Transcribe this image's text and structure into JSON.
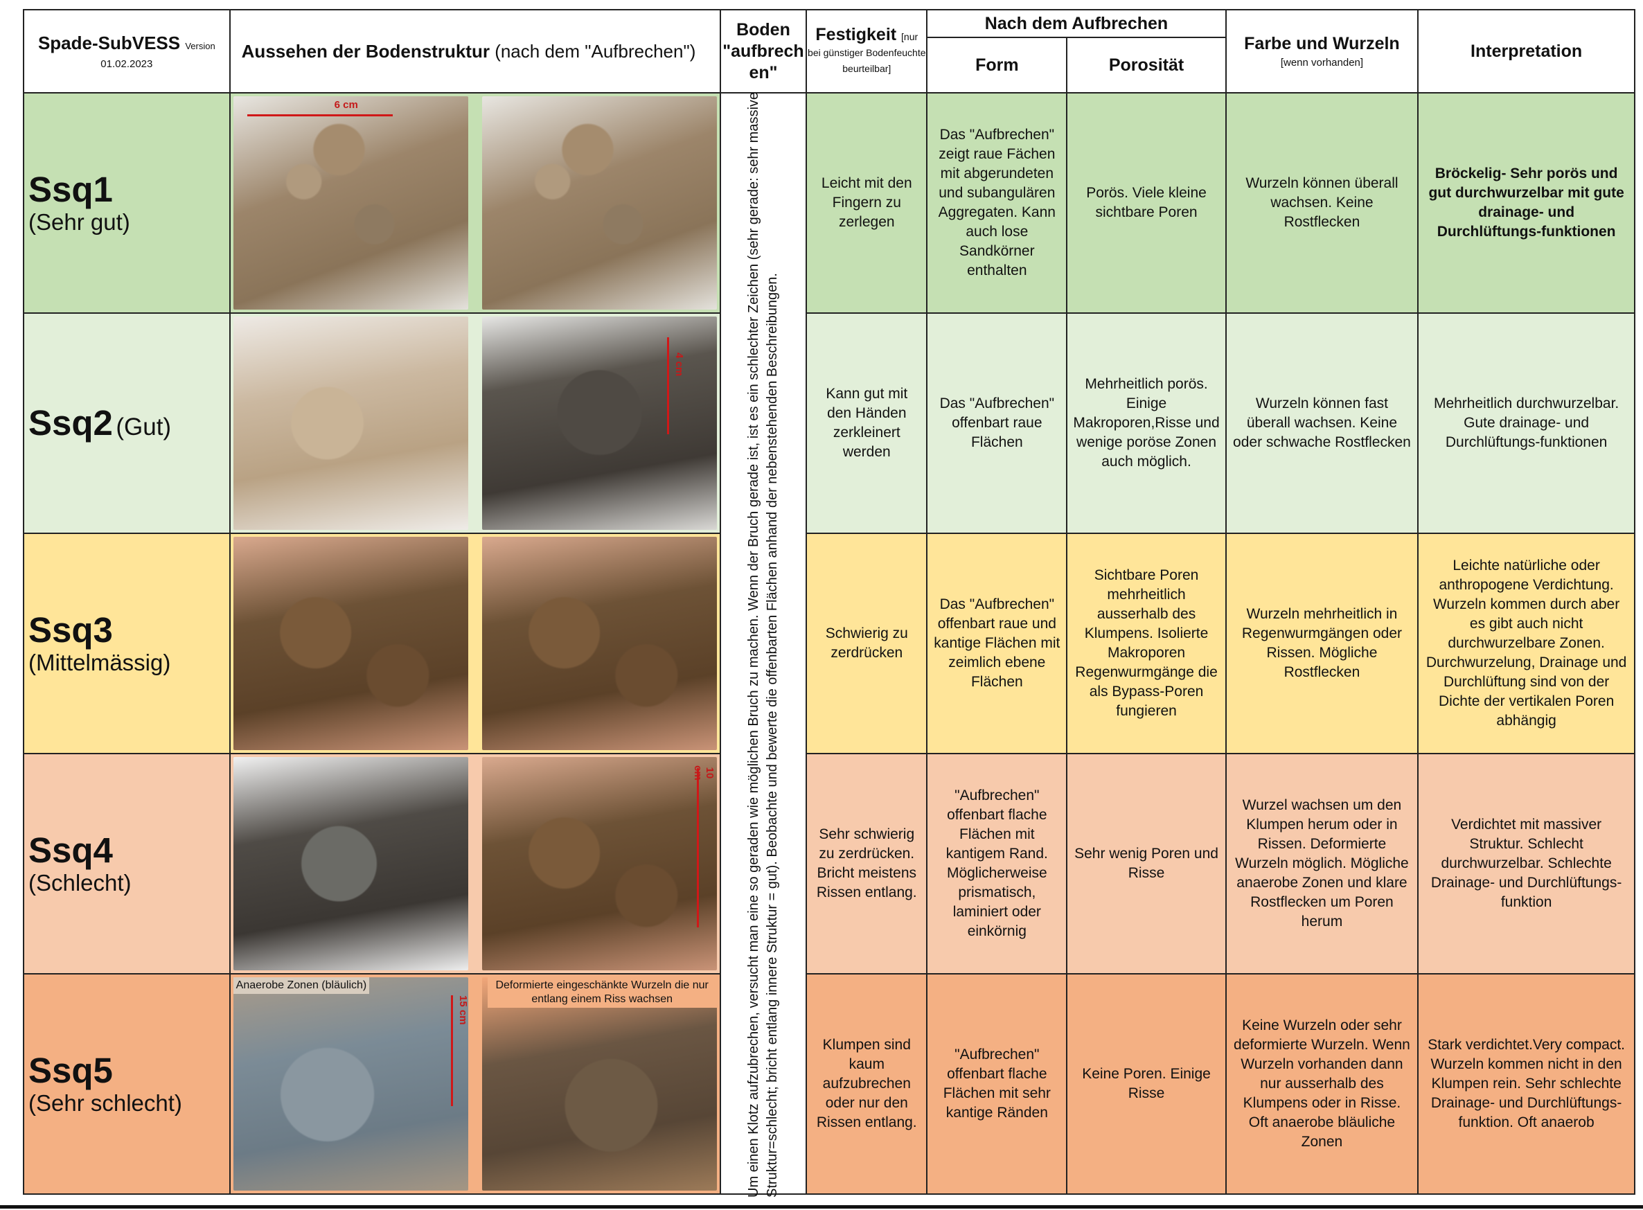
{
  "header": {
    "title": "Spade-SubVESS",
    "version_label": "Version",
    "date": "01.02.2023",
    "appearance": "Aussehen der Bodenstruktur",
    "appearance_sub": "(nach dem \"Aufbrechen\")",
    "break_soil": "Boden \"aufbrech en\"",
    "firmness": "Festigkeit",
    "firmness_note_1": "[nur",
    "firmness_note_2": "bei günstiger Bodenfeuchte beurteilbar]",
    "after_breaking": "Nach dem Aufbrechen",
    "form": "Form",
    "porosity": "Porosität",
    "color_roots": "Farbe und Wurzeln",
    "color_roots_note": "[wenn vorhanden]",
    "interpretation": "Interpretation"
  },
  "vertical_instruction": "Um einen Klotz aufzubrechen, versucht man eine so geraden wie möglichen Bruch zu machen. Wenn der Bruch gerade ist, ist es ein schlechter Zeichen (sehr gerade: sehr massive Struktur=schlecht; bricht entlang innere Struktur = gut). Beobachte und bewerte die offenbarten Flächen anhand der nebenstehenden Beschreibungen.",
  "photo_labels": {
    "ssq1_scale": "6 cm",
    "ssq2_scale": "4 cm",
    "ssq4_scale": "10 cm",
    "ssq5_scale": "15 cm",
    "ssq5_caption_left": "Anaerobe Zonen (bläulich)",
    "ssq5_caption_right": "Deformierte  eingeschänkte Wurzeln die nur entlang einem Riss wachsen"
  },
  "rows": [
    {
      "code": "Ssq1",
      "quality": "(Sehr gut)",
      "firmness": "Leicht mit den Fingern zu zerlegen",
      "form": "Das \"Aufbrechen\" zeigt raue Fächen mit abgerundeten und subangulären Aggregaten. Kann auch lose Sandkörner enthalten",
      "porosity": "Porös. Viele kleine sichtbare Poren",
      "color_roots": "Wurzeln können überall wachsen. Keine Rostflecken",
      "interpretation": "Bröckelig- Sehr porös und gut durchwurzelbar mit gute drainage- und Durchlüftungs-funktionen",
      "color": "#c5e0b3"
    },
    {
      "code": "Ssq2",
      "quality": "(Gut)",
      "firmness": "Kann gut mit den Händen zerkleinert werden",
      "form": "Das \"Aufbrechen\" offenbart raue Flächen",
      "porosity": "Mehrheitlich porös. Einige Makroporen,Risse und wenige poröse Zonen auch möglich.",
      "color_roots": "Wurzeln können fast überall wachsen. Keine oder schwache Rostflecken",
      "interpretation": "Mehrheitlich durchwurzelbar. Gute drainage- und Durchlüftungs-funktionen",
      "color": "#e2efd9"
    },
    {
      "code": "Ssq3",
      "quality": "(Mittelmässig)",
      "firmness": "Schwierig zu zerdrücken",
      "form": "Das \"Aufbrechen\" offenbart raue und kantige Flächen mit zeimlich ebene Flächen",
      "porosity": "Sichtbare Poren mehrheitlich ausserhalb des Klumpens. Isolierte Makroporen Regenwurmgänge die als Bypass-Poren fungieren",
      "color_roots": "Wurzeln mehrheitlich in Regenwurmgängen oder Rissen. Mögliche Rostflecken",
      "interpretation": "Leichte natürliche oder anthropogene Verdichtung. Wurzeln kommen durch aber es gibt auch nicht durchwurzelbare Zonen. Durchwurzelung, Drainage und Durchlüftung sind von der Dichte der vertikalen Poren abhängig",
      "color": "#ffe599"
    },
    {
      "code": "Ssq4",
      "quality": "(Schlecht)",
      "firmness": "Sehr schwierig zu zerdrücken. Bricht meistens Rissen entlang.",
      "form": "\"Aufbrechen\" offenbart flache Flächen mit kantigem Rand. Möglicherweise prismatisch, laminiert oder einkörnig",
      "porosity": "Sehr wenig Poren und Risse",
      "color_roots": "Wurzel wachsen um den Klumpen herum oder in Rissen. Deformierte Wurzeln möglich. Mögliche anaerobe Zonen und klare Rostflecken um Poren herum",
      "interpretation": "Verdichtet mit massiver Struktur. Schlecht durchwurzelbar. Schlechte Drainage- und Durchlüftungs-funktion",
      "color": "#f7caac"
    },
    {
      "code": "Ssq5",
      "quality": "(Sehr schlecht)",
      "firmness": "Klumpen sind kaum aufzubrechen oder nur den Rissen entlang.",
      "form": "\"Aufbrechen\" offenbart flache Flächen mit sehr kantige Ränden",
      "porosity": "Keine Poren. Einige Risse",
      "color_roots": "Keine Wurzeln oder sehr deformierte Wurzeln. Wenn Wurzeln vorhanden dann nur ausserhalb des Klumpens oder in Risse. Oft anaerobe bläuliche Zonen",
      "interpretation": "Stark verdichtet.Very compact. Wurzeln kommen nicht in den Klumpen rein. Sehr schlechte Drainage- und Durchlüftungs-funktion. Oft anaerob",
      "color": "#f4b083"
    }
  ]
}
